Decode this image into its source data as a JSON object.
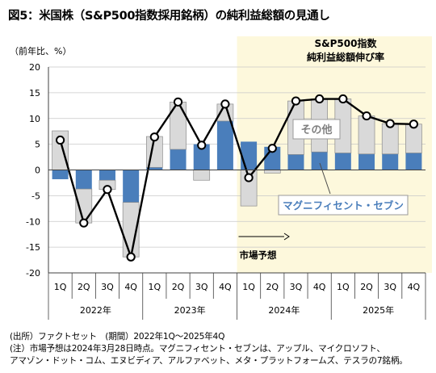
{
  "title": "図5：米国株（S&P500指数採用銘柄）の純利益総額の見通し",
  "unit_label": "（前年比、%）",
  "notes": [
    "(出所）ファクトセット　(期間）2022年1Q～2025年4Q",
    "(注）市場予想は2024年3月28日時点。マグニフィセント・セブンは、アップル、マイクロソフト、",
    "アマゾン・ドット・コム、エヌビディア、アルファベット、メタ・プラットフォームズ、テスラの7銘柄。"
  ],
  "colors": {
    "mag7": "#4a7ebb",
    "others": "#d9d9d9",
    "others_stroke": "#8c8c8c",
    "forecast_bg": "#fdf8dc",
    "line": "#000000"
  },
  "chart_data": {
    "type": "bar",
    "stacked": true,
    "title": "図5：米国株（S&P500指数採用銘柄）の純利益総額の見通し",
    "ylabel": "（前年比、%）",
    "ylim": [
      -20,
      20
    ],
    "yticks": [
      -20,
      -15,
      -10,
      -5,
      0,
      5,
      10,
      15,
      20
    ],
    "grid": true,
    "quarters": [
      "1Q",
      "2Q",
      "3Q",
      "4Q",
      "1Q",
      "2Q",
      "3Q",
      "4Q",
      "1Q",
      "2Q",
      "3Q",
      "4Q",
      "1Q",
      "2Q",
      "3Q",
      "4Q"
    ],
    "years": [
      "2022年",
      "2023年",
      "2024年",
      "2025年"
    ],
    "series": [
      {
        "name": "マグニフィセント・セブン",
        "values": [
          -1.8,
          -3.7,
          -2.0,
          -6.3,
          0.5,
          4.0,
          5.0,
          9.5,
          5.5,
          4.5,
          3.0,
          3.5,
          3.3,
          3.1,
          3.1,
          3.3
        ]
      },
      {
        "name": "その他",
        "values": [
          7.6,
          -6.6,
          -1.8,
          -10.6,
          6.0,
          9.2,
          -2.0,
          3.3,
          -7.0,
          -0.6,
          10.4,
          10.3,
          10.5,
          7.4,
          5.9,
          5.6
        ]
      },
      {
        "name": "",
        "type": "line",
        "values": [
          5.8,
          -10.3,
          -3.8,
          -16.9,
          6.4,
          13.2,
          4.8,
          12.8,
          -1.5,
          4.2,
          13.4,
          13.8,
          13.8,
          10.5,
          9.0,
          8.9
        ]
      }
    ],
    "forecast_label": "市場予想",
    "header_label": [
      "S&P500指数",
      "純利益総額伸び率"
    ],
    "annotations": [
      "その他",
      "マグニフィセント・セブン"
    ]
  }
}
